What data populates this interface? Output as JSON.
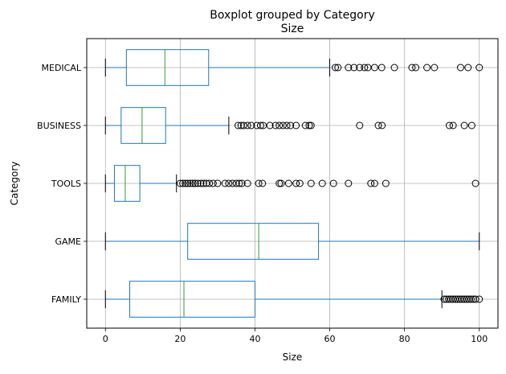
{
  "chart_data": {
    "type": "boxplot",
    "orientation": "horizontal",
    "suptitle": "Boxplot grouped by Category",
    "title": "Size",
    "xlabel": "Size",
    "ylabel": "Category",
    "xlim": [
      -5,
      105
    ],
    "xticks": [
      0,
      20,
      40,
      60,
      80,
      100
    ],
    "grid": true,
    "colors": {
      "box": "#1f77b4",
      "median": "#2ca02c",
      "flier": "#000000",
      "grid": "#b0b0b0"
    },
    "categories": [
      "MEDICAL",
      "BUSINESS",
      "TOOLS",
      "GAME",
      "FAMILY"
    ],
    "boxes": [
      {
        "category": "MEDICAL",
        "whislo": 0,
        "q1": 5.6,
        "med": 15.9,
        "q3": 27.6,
        "whishi": 60,
        "fliers": [
          61.5,
          62.2,
          65,
          66.5,
          68,
          69.3,
          70.2,
          72,
          73.9,
          77.3,
          82,
          83,
          86,
          88,
          95,
          97,
          100
        ]
      },
      {
        "category": "BUSINESS",
        "whislo": 0,
        "q1": 4.2,
        "med": 9.8,
        "q3": 16.1,
        "whishi": 33,
        "fliers": [
          35.5,
          36.3,
          37,
          38,
          39,
          40.5,
          41.5,
          42.2,
          44,
          45.5,
          46.5,
          47.5,
          48.5,
          49.5,
          51,
          53.5,
          54.5,
          55,
          68,
          73,
          74,
          92,
          93,
          96,
          98
        ]
      },
      {
        "category": "TOOLS",
        "whislo": 0,
        "q1": 2.4,
        "med": 5.3,
        "q3": 9.2,
        "whishi": 19,
        "fliers": [
          20,
          20.7,
          21.4,
          22,
          22.7,
          23.4,
          24,
          24.7,
          25.5,
          26.2,
          27,
          27.8,
          28.8,
          30,
          32,
          33,
          34,
          35,
          35.8,
          36.5,
          38,
          41,
          42,
          46.5,
          47,
          49,
          51,
          52,
          55,
          58,
          61,
          65,
          71,
          72,
          75,
          99
        ]
      },
      {
        "category": "GAME",
        "whislo": 0,
        "q1": 22,
        "med": 41,
        "q3": 57,
        "whishi": 100,
        "fliers": []
      },
      {
        "category": "FAMILY",
        "whislo": 0,
        "q1": 6.5,
        "med": 21,
        "q3": 40,
        "whishi": 90,
        "fliers": [
          90.6,
          91.2,
          91.8,
          92.4,
          93,
          93.6,
          94.2,
          94.8,
          95.4,
          96,
          96.6,
          97.2,
          97.8,
          98.4,
          99,
          100
        ]
      }
    ]
  }
}
